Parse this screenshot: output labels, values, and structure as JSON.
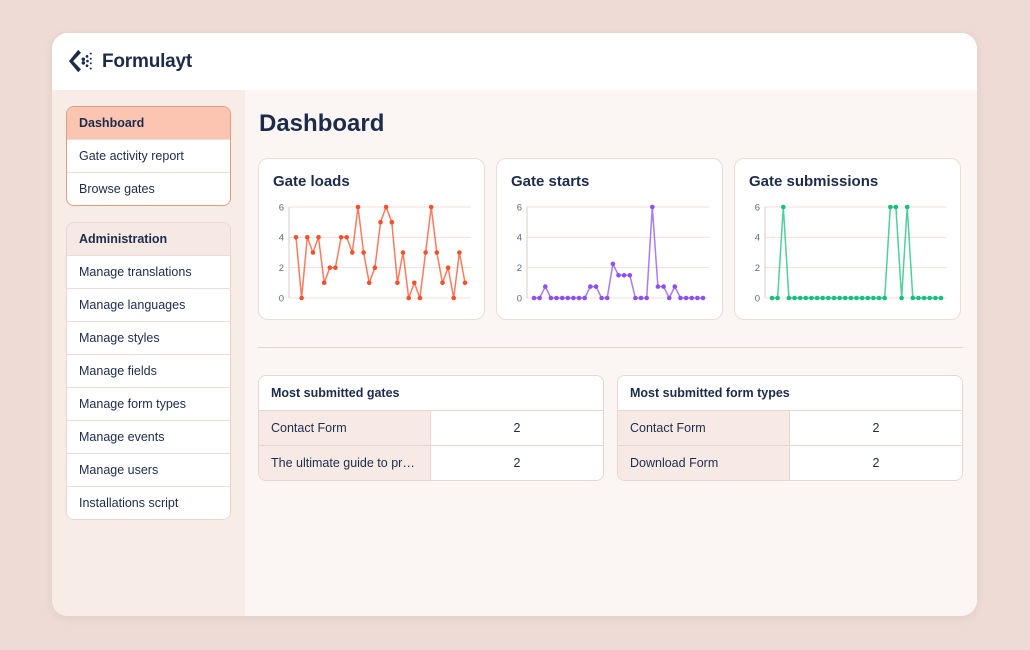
{
  "brand": {
    "name": "Formulayt"
  },
  "page": {
    "title": "Dashboard"
  },
  "sidebar": {
    "groups": [
      {
        "header": null,
        "items": [
          {
            "label": "Dashboard",
            "active": true
          },
          {
            "label": "Gate activity report",
            "active": false
          },
          {
            "label": "Browse gates",
            "active": false
          }
        ]
      },
      {
        "header": "Administration",
        "items": [
          {
            "label": "Manage translations",
            "active": false
          },
          {
            "label": "Manage languages",
            "active": false
          },
          {
            "label": "Manage styles",
            "active": false
          },
          {
            "label": "Manage fields",
            "active": false
          },
          {
            "label": "Manage form types",
            "active": false
          },
          {
            "label": "Manage events",
            "active": false
          },
          {
            "label": "Manage users",
            "active": false
          },
          {
            "label": "Installations script",
            "active": false
          }
        ]
      }
    ]
  },
  "chart_data": [
    {
      "type": "line",
      "title": "Gate loads",
      "color": "#f4502c",
      "values": [
        4,
        0,
        4,
        3,
        4,
        1,
        2,
        2,
        4,
        4,
        3,
        6,
        3,
        1,
        2,
        5,
        6,
        5,
        1,
        3,
        0,
        1,
        0,
        3,
        6,
        3,
        1,
        2,
        0,
        3,
        1
      ],
      "ylim": [
        0,
        6
      ],
      "yticks": [
        0,
        2,
        4,
        6
      ],
      "grid": true,
      "legend": "none"
    },
    {
      "type": "line",
      "title": "Gate starts",
      "color": "#8b50f0",
      "values": [
        0,
        0,
        0.75,
        0,
        0,
        0,
        0,
        0,
        0,
        0,
        0.75,
        0.75,
        0,
        0,
        2.25,
        1.5,
        1.5,
        1.5,
        0,
        0,
        0,
        6,
        0.75,
        0.75,
        0,
        0.75,
        0,
        0,
        0,
        0,
        0
      ],
      "ylim": [
        0,
        6
      ],
      "yticks": [
        0,
        2,
        4,
        6
      ],
      "grid": true,
      "legend": "none"
    },
    {
      "type": "line",
      "title": "Gate submissions",
      "color": "#14c07c",
      "values": [
        0,
        0,
        6,
        0,
        0,
        0,
        0,
        0,
        0,
        0,
        0,
        0,
        0,
        0,
        0,
        0,
        0,
        0,
        0,
        0,
        0,
        6,
        6,
        0,
        6,
        0,
        0,
        0,
        0,
        0,
        0
      ],
      "ylim": [
        0,
        6
      ],
      "yticks": [
        0,
        2,
        4,
        6
      ],
      "grid": true,
      "legend": "none"
    }
  ],
  "tables": [
    {
      "title": "Most submitted gates",
      "rows": [
        {
          "label": "Contact Form",
          "value": "2"
        },
        {
          "label": "The ultimate guide to progre…",
          "value": "2"
        }
      ]
    },
    {
      "title": "Most submitted form types",
      "rows": [
        {
          "label": "Contact Form",
          "value": "2"
        },
        {
          "label": "Download Form",
          "value": "2"
        }
      ]
    }
  ],
  "colors": {
    "outer_bg": "#eedbd5",
    "navy_text": "#1d2b4b",
    "sidebar_bg": "#f8ece7",
    "main_bg": "#fbf6f3",
    "active_item_bg": "#fbc5b1",
    "accent_border": "#dd9d83",
    "grid_line": "#f3e1da",
    "axis_line": "#d9cec8",
    "axis_label": "#5c6b7e",
    "chart_orange": "#f4502c",
    "chart_purple": "#8b50f0",
    "chart_green": "#14c07c"
  }
}
